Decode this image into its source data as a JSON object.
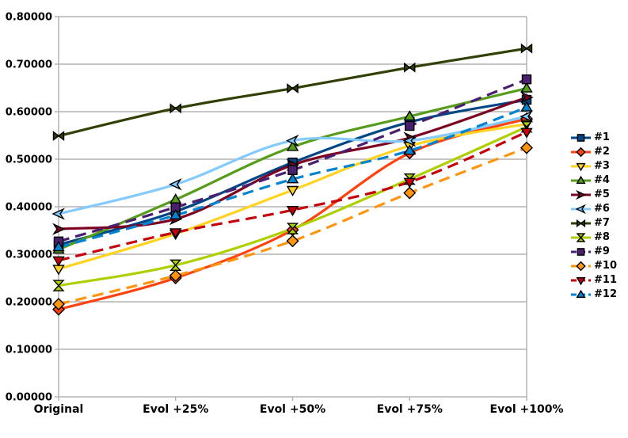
{
  "chart_data": {
    "type": "line",
    "title": "",
    "xlabel": "",
    "ylabel": "",
    "grid": true,
    "smoothed_lines": true,
    "legend_position": "right",
    "ylim": [
      0,
      0.8
    ],
    "ytick_step": 0.1,
    "ytick_labels": [
      "0.00000",
      "0.10000",
      "0.20000",
      "0.30000",
      "0.40000",
      "0.50000",
      "0.60000",
      "0.70000",
      "0.80000"
    ],
    "categories": [
      "Original",
      "Evol +25%",
      "Evol +50%",
      "Evol +75%",
      "Evol +100%"
    ],
    "series": [
      {
        "name": "#1",
        "color": "#004586",
        "marker": "square",
        "dash": false,
        "values": [
          0.32,
          0.39,
          0.493,
          0.578,
          0.625
        ]
      },
      {
        "name": "#2",
        "color": "#FF420E",
        "marker": "diamond",
        "dash": false,
        "values": [
          0.184,
          0.25,
          0.351,
          0.513,
          0.585
        ]
      },
      {
        "name": "#3",
        "color": "#FFD320",
        "marker": "triangle-down",
        "dash": false,
        "values": [
          0.269,
          0.343,
          0.435,
          0.528,
          0.574
        ]
      },
      {
        "name": "#4",
        "color": "#579D1C",
        "marker": "triangle-up",
        "dash": false,
        "values": [
          0.31,
          0.415,
          0.526,
          0.59,
          0.649
        ]
      },
      {
        "name": "#5",
        "color": "#7E0021",
        "marker": "arrow-right",
        "dash": false,
        "values": [
          0.353,
          0.374,
          0.488,
          0.545,
          0.63
        ]
      },
      {
        "name": "#6",
        "color": "#83CAFF",
        "marker": "arrow-left",
        "dash": false,
        "values": [
          0.385,
          0.447,
          0.539,
          0.539,
          0.59
        ]
      },
      {
        "name": "#7",
        "color": "#314004",
        "marker": "bowtie",
        "dash": false,
        "values": [
          0.549,
          0.607,
          0.649,
          0.693,
          0.733
        ]
      },
      {
        "name": "#8",
        "color": "#AECF00",
        "marker": "hourglass",
        "dash": false,
        "values": [
          0.234,
          0.277,
          0.354,
          0.458,
          0.568
        ]
      },
      {
        "name": "#9",
        "color": "#4B1F6F",
        "marker": "square",
        "dash": true,
        "values": [
          0.327,
          0.399,
          0.477,
          0.57,
          0.668
        ]
      },
      {
        "name": "#10",
        "color": "#FF950E",
        "marker": "diamond",
        "dash": true,
        "values": [
          0.195,
          0.255,
          0.328,
          0.429,
          0.524
        ]
      },
      {
        "name": "#11",
        "color": "#C5000B",
        "marker": "triangle-down",
        "dash": true,
        "values": [
          0.287,
          0.346,
          0.393,
          0.452,
          0.557
        ]
      },
      {
        "name": "#12",
        "color": "#0084D1",
        "marker": "triangle-up",
        "dash": true,
        "values": [
          0.315,
          0.382,
          0.458,
          0.518,
          0.609
        ]
      }
    ],
    "gridline_color": "#b3b3b3",
    "text_color": "#000000",
    "background_color": "#ffffff"
  }
}
